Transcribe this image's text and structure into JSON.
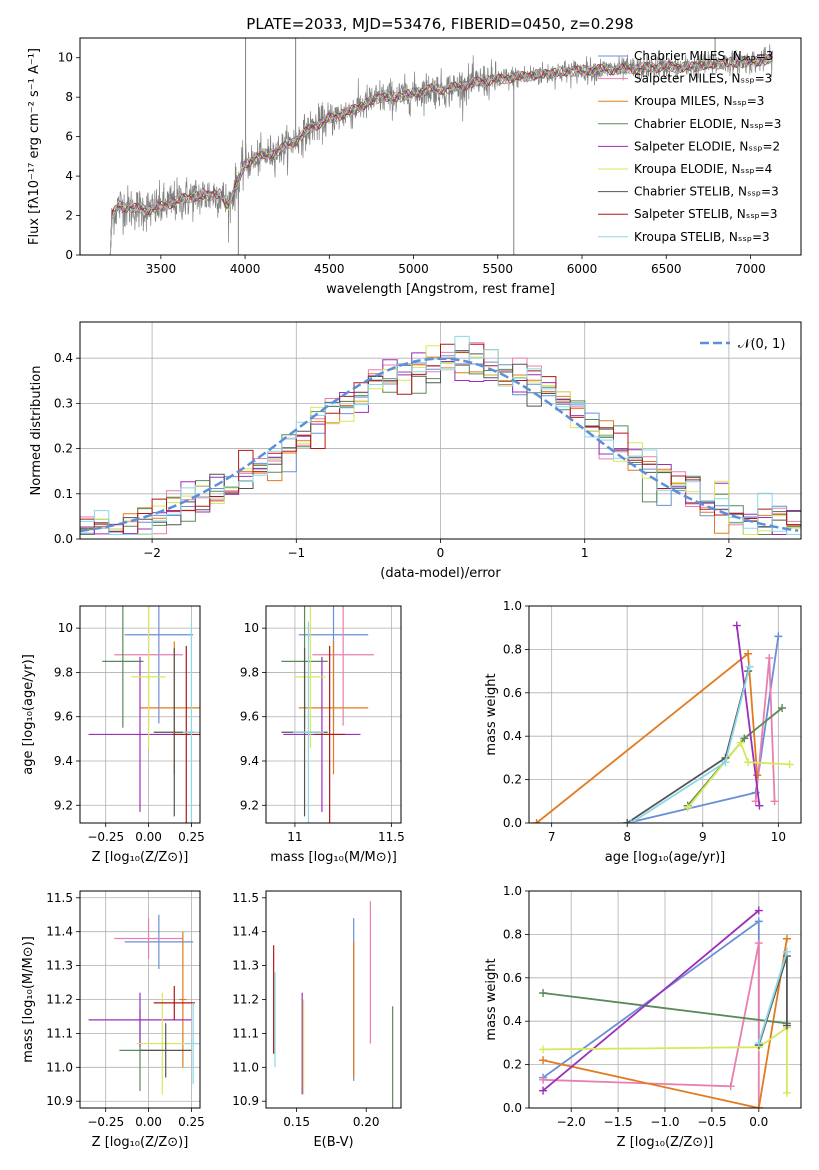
{
  "figure_title": "PLATE=2033, MJD=53476, FIBERID=0450, z=0.298",
  "colors": {
    "chabrier_miles": "#6b8fd6",
    "salpeter_miles": "#e87fb0",
    "kroupa_miles": "#e07b1f",
    "chabrier_elodie": "#5a8a5a",
    "salpeter_elodie": "#9b2fb8",
    "kroupa_elodie": "#d8e85a",
    "chabrier_stelib": "#555555",
    "salpeter_stelib": "#b01818",
    "kroupa_stelib": "#8ad8e8",
    "data": "#808080",
    "normal": "#5b8fd9",
    "grid": "#b0b0b0"
  },
  "chart_data": [
    {
      "id": "spectrum",
      "type": "line",
      "title": "PLATE=2033, MJD=53476, FIBERID=0450, z=0.298",
      "xlabel": "wavelength [Angstrom, rest frame]",
      "ylabel": "Flux [fλ10⁻¹⁷ erg cm⁻² s⁻¹ A⁻¹]",
      "xlim": [
        3020,
        7300
      ],
      "ylim": [
        0,
        11
      ],
      "xticks": [
        3500,
        4000,
        4500,
        5000,
        5500,
        6000,
        6500,
        7000
      ],
      "yticks": [
        0,
        2,
        4,
        6,
        8,
        10
      ],
      "grid": false,
      "legend_position": "top-right",
      "legend": [
        {
          "label": "Chabrier MILES, Nₛₛₚ=3",
          "color": "#6b8fd6"
        },
        {
          "label": "Salpeter MILES, Nₛₛₚ=3",
          "color": "#e87fb0"
        },
        {
          "label": "Kroupa MILES, Nₛₛₚ=3",
          "color": "#e07b1f"
        },
        {
          "label": "Chabrier ELODIE, Nₛₛₚ=3",
          "color": "#5a8a5a"
        },
        {
          "label": "Salpeter ELODIE, Nₛₛₚ=2",
          "color": "#9b2fb8"
        },
        {
          "label": "Kroupa ELODIE, Nₛₛₚ=4",
          "color": "#d8e85a"
        },
        {
          "label": "Chabrier STELIB, Nₛₛₚ=3",
          "color": "#555555"
        },
        {
          "label": "Salpeter STELIB, Nₛₛₚ=3",
          "color": "#b01818"
        },
        {
          "label": "Kroupa STELIB, Nₛₛₚ=3",
          "color": "#8ad8e8"
        }
      ],
      "continuum": [
        [
          3200,
          0
        ],
        [
          3210,
          2.0
        ],
        [
          3250,
          2.5
        ],
        [
          3350,
          2.35
        ],
        [
          3450,
          2.3
        ],
        [
          3550,
          2.6
        ],
        [
          3650,
          2.9
        ],
        [
          3750,
          3.0
        ],
        [
          3850,
          3.1
        ],
        [
          3900,
          2.5
        ],
        [
          3950,
          3.6
        ],
        [
          4000,
          4.6
        ],
        [
          4100,
          5.0
        ],
        [
          4200,
          5.3
        ],
        [
          4300,
          5.8
        ],
        [
          4400,
          6.5
        ],
        [
          4500,
          6.9
        ],
        [
          4600,
          7.2
        ],
        [
          4700,
          7.6
        ],
        [
          4800,
          8.0
        ],
        [
          4900,
          8.0
        ],
        [
          5000,
          8.2
        ],
        [
          5100,
          8.4
        ],
        [
          5200,
          8.4
        ],
        [
          5300,
          8.6
        ],
        [
          5400,
          8.8
        ],
        [
          5500,
          8.9
        ],
        [
          5600,
          9.0
        ],
        [
          5700,
          9.1
        ],
        [
          5800,
          9.2
        ],
        [
          5900,
          9.3
        ],
        [
          6000,
          9.35
        ],
        [
          6100,
          9.4
        ],
        [
          6200,
          9.4
        ],
        [
          6300,
          9.45
        ],
        [
          6400,
          9.5
        ],
        [
          6500,
          9.55
        ],
        [
          6600,
          9.5
        ],
        [
          6700,
          9.6
        ],
        [
          6800,
          9.7
        ],
        [
          6900,
          9.75
        ],
        [
          7000,
          9.8
        ],
        [
          7100,
          9.9
        ],
        [
          7130,
          9.9
        ]
      ],
      "spikes": [
        {
          "x": 4003,
          "y": 11.0
        },
        {
          "x": 4300,
          "y": 11.0
        },
        {
          "x": 5595,
          "y": 0.0
        },
        {
          "x": 6790,
          "y": 11.0
        },
        {
          "x": 3960,
          "y": 0.0
        }
      ]
    },
    {
      "id": "residuals",
      "type": "histogram",
      "xlabel": "(data-model)/error",
      "ylabel": "Normed distribution",
      "xlim": [
        -2.5,
        2.5
      ],
      "ylim": [
        0,
        0.48
      ],
      "xticks": [
        -2,
        -1,
        0,
        1,
        2
      ],
      "yticks": [
        0.0,
        0.1,
        0.2,
        0.3,
        0.4
      ],
      "grid": true,
      "legend_position": "top-right",
      "legend": [
        {
          "label": "𝒩(0, 1)",
          "color": "#5b8fd9",
          "style": "dashed"
        }
      ],
      "bin_width": 0.1
    },
    {
      "id": "age_vs_Z",
      "type": "errorbar",
      "xlabel": "Z [log₁₀(Z/Z⊙)]",
      "ylabel": "age  [log₁₀(age/yr)]",
      "xlim": [
        -0.4,
        0.3
      ],
      "ylim": [
        9.12,
        10.1
      ],
      "xticks": [
        -0.25,
        0.0,
        0.25
      ],
      "xticklabels": [
        "−0.25",
        "0.00",
        "0.25"
      ],
      "yticks": [
        9.2,
        9.4,
        9.6,
        9.8,
        10.0
      ],
      "grid": true,
      "points": [
        {
          "x": 0.06,
          "y": 9.97,
          "xerr": 0.2,
          "yerr": 0.4,
          "color": "#6b8fd6"
        },
        {
          "x": 0.0,
          "y": 9.88,
          "xerr": 0.2,
          "yerr": 0.32,
          "color": "#e87fb0"
        },
        {
          "x": 0.15,
          "y": 9.64,
          "xerr": 0.2,
          "yerr": 0.3,
          "color": "#e07b1f"
        },
        {
          "x": -0.15,
          "y": 9.85,
          "xerr": 0.12,
          "yerr": 0.3,
          "color": "#5a8a5a"
        },
        {
          "x": -0.05,
          "y": 9.52,
          "xerr": 0.3,
          "yerr": 0.35,
          "color": "#9b2fb8"
        },
        {
          "x": 0.0,
          "y": 9.78,
          "xerr": 0.1,
          "yerr": 0.32,
          "color": "#d8e85a"
        },
        {
          "x": 0.15,
          "y": 9.53,
          "xerr": 0.12,
          "yerr": 0.38,
          "color": "#555555"
        },
        {
          "x": 0.22,
          "y": 9.52,
          "xerr": 0.08,
          "yerr": 0.4,
          "color": "#b01818"
        },
        {
          "x": 0.25,
          "y": 9.53,
          "xerr": 0.05,
          "yerr": 0.5,
          "color": "#8ad8e8"
        }
      ]
    },
    {
      "id": "age_vs_mass",
      "type": "errorbar",
      "xlabel": "mass [log₁₀(M/M⊙)]",
      "xlim": [
        10.85,
        11.55
      ],
      "ylim": [
        9.12,
        10.1
      ],
      "xticks": [
        11.0,
        11.5
      ],
      "yticks": [
        9.2,
        9.4,
        9.6,
        9.8,
        10.0
      ],
      "grid": true,
      "points": [
        {
          "x": 11.2,
          "y": 9.97,
          "xerr": 0.18,
          "yerr": 0.4,
          "color": "#6b8fd6"
        },
        {
          "x": 11.25,
          "y": 9.88,
          "xerr": 0.16,
          "yerr": 0.32,
          "color": "#e87fb0"
        },
        {
          "x": 11.2,
          "y": 9.64,
          "xerr": 0.18,
          "yerr": 0.3,
          "color": "#e07b1f"
        },
        {
          "x": 11.05,
          "y": 9.85,
          "xerr": 0.12,
          "yerr": 0.3,
          "color": "#5a8a5a"
        },
        {
          "x": 11.14,
          "y": 9.52,
          "xerr": 0.2,
          "yerr": 0.35,
          "color": "#9b2fb8"
        },
        {
          "x": 11.08,
          "y": 9.78,
          "xerr": 0.08,
          "yerr": 0.32,
          "color": "#d8e85a"
        },
        {
          "x": 11.05,
          "y": 9.53,
          "xerr": 0.12,
          "yerr": 0.38,
          "color": "#555555"
        },
        {
          "x": 11.18,
          "y": 9.52,
          "xerr": 0.08,
          "yerr": 0.4,
          "color": "#b01818"
        },
        {
          "x": 11.07,
          "y": 9.53,
          "xerr": 0.08,
          "yerr": 0.5,
          "color": "#8ad8e8"
        }
      ]
    },
    {
      "id": "weight_vs_age",
      "type": "line",
      "xlabel": "age  [log₁₀(age/yr)]",
      "ylabel": "mass weight",
      "xlim": [
        6.7,
        10.3
      ],
      "ylim": [
        0,
        1.0
      ],
      "xticks": [
        7,
        8,
        9,
        10
      ],
      "yticks": [
        0.0,
        0.2,
        0.4,
        0.6,
        0.8,
        1.0
      ],
      "grid": true,
      "series": [
        {
          "color": "#6b8fd6",
          "points": [
            [
              8.0,
              0
            ],
            [
              9.7,
              0.14
            ],
            [
              10.0,
              0.86
            ]
          ]
        },
        {
          "color": "#e87fb0",
          "points": [
            [
              9.7,
              0.1
            ],
            [
              9.88,
              0.76
            ],
            [
              9.95,
              0.1
            ]
          ]
        },
        {
          "color": "#e07b1f",
          "points": [
            [
              6.8,
              0
            ],
            [
              9.6,
              0.78
            ],
            [
              9.72,
              0.22
            ]
          ]
        },
        {
          "color": "#5a8a5a",
          "points": [
            [
              8.8,
              0.08
            ],
            [
              9.55,
              0.39
            ],
            [
              10.05,
              0.53
            ]
          ]
        },
        {
          "color": "#9b2fb8",
          "points": [
            [
              9.45,
              0.91
            ],
            [
              9.75,
              0.08
            ]
          ]
        },
        {
          "color": "#d8e85a",
          "points": [
            [
              8.8,
              0.07
            ],
            [
              9.5,
              0.37
            ],
            [
              9.6,
              0.28
            ],
            [
              10.15,
              0.27
            ]
          ]
        },
        {
          "color": "#555555",
          "points": [
            [
              8.0,
              0
            ],
            [
              9.3,
              0.3
            ],
            [
              9.6,
              0.7
            ]
          ]
        },
        {
          "color": "#8ad8e8",
          "points": [
            [
              8.05,
              0
            ],
            [
              9.3,
              0.28
            ],
            [
              9.62,
              0.72
            ]
          ]
        }
      ]
    },
    {
      "id": "mass_vs_Z",
      "type": "errorbar",
      "xlabel": "Z [log₁₀(Z/Z⊙)]",
      "ylabel": "mass [log₁₀(M/M⊙)]",
      "xlim": [
        -0.4,
        0.3
      ],
      "ylim": [
        10.88,
        11.52
      ],
      "xticks": [
        -0.25,
        0.0,
        0.25
      ],
      "xticklabels": [
        "−0.25",
        "0.00",
        "0.25"
      ],
      "yticks": [
        10.9,
        11.0,
        11.1,
        11.2,
        11.3,
        11.4,
        11.5
      ],
      "grid": true,
      "points": [
        {
          "x": 0.06,
          "y": 11.37,
          "xerr": 0.2,
          "yerr": 0.08,
          "color": "#6b8fd6"
        },
        {
          "x": 0.0,
          "y": 11.38,
          "xerr": 0.2,
          "yerr": 0.06,
          "color": "#e87fb0"
        },
        {
          "x": 0.2,
          "y": 11.2,
          "xerr": 0.02,
          "yerr": 0.2,
          "color": "#e07b1f"
        },
        {
          "x": -0.05,
          "y": 11.05,
          "xerr": 0.12,
          "yerr": 0.12,
          "color": "#5a8a5a"
        },
        {
          "x": -0.05,
          "y": 11.14,
          "xerr": 0.3,
          "yerr": 0.08,
          "color": "#9b2fb8"
        },
        {
          "x": 0.08,
          "y": 11.07,
          "xerr": 0.15,
          "yerr": 0.15,
          "color": "#d8e85a"
        },
        {
          "x": 0.1,
          "y": 11.05,
          "xerr": 0.15,
          "yerr": 0.08,
          "color": "#555555"
        },
        {
          "x": 0.15,
          "y": 11.19,
          "xerr": 0.12,
          "yerr": 0.05,
          "color": "#b01818"
        },
        {
          "x": 0.26,
          "y": 11.07,
          "xerr": 0.05,
          "yerr": 0.12,
          "color": "#8ad8e8"
        }
      ]
    },
    {
      "id": "ebv",
      "type": "errorbar",
      "xlabel": "E(B-V)",
      "xlim": [
        0.128,
        0.225
      ],
      "ylim": [
        10.88,
        11.52
      ],
      "xticks": [
        0.15,
        0.2
      ],
      "xticklabels": [
        "0.15",
        "0.20"
      ],
      "yticks": [
        10.9,
        11.0,
        11.1,
        11.2,
        11.3,
        11.4,
        11.5
      ],
      "grid": false,
      "points": [
        {
          "x": 0.1335,
          "y": 11.2,
          "yerr": 0.16,
          "color": "#b01818"
        },
        {
          "x": 0.1345,
          "y": 11.14,
          "yerr": 0.14,
          "color": "#8ad8e8"
        },
        {
          "x": 0.154,
          "y": 11.07,
          "yerr": 0.15,
          "color": "#9b2fb8"
        },
        {
          "x": 0.155,
          "y": 11.06,
          "yerr": 0.14,
          "color": "#d8e85a"
        },
        {
          "x": 0.191,
          "y": 11.2,
          "yerr": 0.24,
          "color": "#6b8fd6"
        },
        {
          "x": 0.191,
          "y": 11.17,
          "yerr": 0.2,
          "color": "#e07b1f"
        },
        {
          "x": 0.203,
          "y": 11.28,
          "yerr": 0.21,
          "color": "#e87fb0"
        },
        {
          "x": 0.219,
          "y": 11.03,
          "yerr": 0.15,
          "color": "#5a8a5a"
        }
      ]
    },
    {
      "id": "weight_vs_Z",
      "type": "line",
      "xlabel": "Z [log₁₀(Z/Z⊙)]",
      "ylabel": "mass weight",
      "xlim": [
        -2.45,
        0.45
      ],
      "ylim": [
        0,
        1.0
      ],
      "xticks": [
        -2.0,
        -1.5,
        -1.0,
        -0.5,
        0.0
      ],
      "xticklabels": [
        "−2.0",
        "−1.5",
        "−1.0",
        "−0.5",
        "0.0"
      ],
      "yticks": [
        0.0,
        0.2,
        0.4,
        0.6,
        0.8,
        1.0
      ],
      "grid": true,
      "series": [
        {
          "color": "#6b8fd6",
          "points": [
            [
              -2.3,
              0.14
            ],
            [
              0.0,
              0.86
            ],
            [
              0.0,
              0.29
            ]
          ]
        },
        {
          "color": "#e87fb0",
          "points": [
            [
              -2.3,
              0.13
            ],
            [
              -0.3,
              0.1
            ],
            [
              0.0,
              0.76
            ],
            [
              0.0,
              0
            ]
          ]
        },
        {
          "color": "#e07b1f",
          "points": [
            [
              -2.3,
              0.22
            ],
            [
              0.0,
              0
            ],
            [
              0.3,
              0.78
            ]
          ]
        },
        {
          "color": "#5a8a5a",
          "points": [
            [
              -2.3,
              0.53
            ],
            [
              0.3,
              0.39
            ]
          ]
        },
        {
          "color": "#9b2fb8",
          "points": [
            [
              -2.3,
              0.08
            ],
            [
              0.0,
              0.91
            ]
          ]
        },
        {
          "color": "#d8e85a",
          "points": [
            [
              -2.3,
              0.27
            ],
            [
              0.0,
              0.28
            ],
            [
              0.3,
              0.37
            ],
            [
              0.3,
              0.07
            ]
          ]
        },
        {
          "color": "#555555",
          "points": [
            [
              0.0,
              0.29
            ],
            [
              0.3,
              0.7
            ],
            [
              0.3,
              0.38
            ]
          ]
        },
        {
          "color": "#8ad8e8",
          "points": [
            [
              0.0,
              0.3
            ],
            [
              0.3,
              0.72
            ]
          ]
        }
      ]
    }
  ]
}
